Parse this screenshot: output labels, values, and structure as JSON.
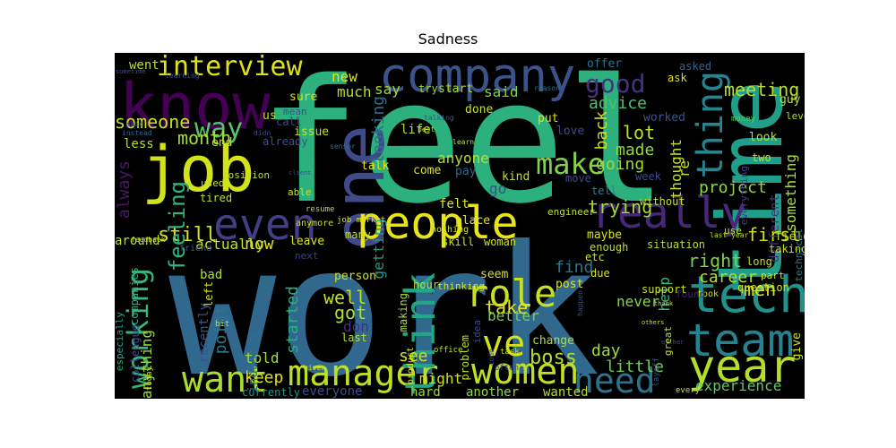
{
  "title": "Sadness",
  "words": [
    {
      "text": "feel",
      "color": "#2cb17e"
    },
    {
      "text": "work",
      "color": "#31688e"
    },
    {
      "text": "time",
      "color": "#1f9e89"
    },
    {
      "text": "know",
      "color": "#440154"
    },
    {
      "text": "company",
      "color": "#3b528b"
    },
    {
      "text": "job",
      "color": "#d2e21b"
    },
    {
      "text": "one",
      "color": "#3e4a89"
    },
    {
      "text": "people",
      "color": "#e8e419"
    },
    {
      "text": "really",
      "color": "#482878"
    },
    {
      "text": "even",
      "color": "#433e85"
    },
    {
      "text": "tech",
      "color": "#21918c"
    },
    {
      "text": "team",
      "color": "#26828e"
    },
    {
      "text": "year",
      "color": "#b5de2b"
    },
    {
      "text": "manager",
      "color": "#bddf26"
    },
    {
      "text": "women",
      "color": "#c2df23"
    },
    {
      "text": "want",
      "color": "#addc30"
    },
    {
      "text": "need",
      "color": "#2c728e"
    },
    {
      "text": "role",
      "color": "#c8e020"
    },
    {
      "text": "ve",
      "color": "#d5e21a"
    },
    {
      "text": "think",
      "color": "#22a785"
    },
    {
      "text": "interview",
      "color": "#dde318"
    },
    {
      "text": "good",
      "color": "#46337f"
    },
    {
      "text": "thing",
      "color": "#25848e"
    },
    {
      "text": "working",
      "color": "#35b779"
    },
    {
      "text": "make",
      "color": "#81d34d"
    },
    {
      "text": "way",
      "color": "#54c568"
    },
    {
      "text": "meeting",
      "color": "#b8de29"
    },
    {
      "text": "advice",
      "color": "#4ec36b"
    },
    {
      "text": "lot",
      "color": "#c0df25"
    },
    {
      "text": "made",
      "color": "#90d743"
    },
    {
      "text": "back",
      "color": "#d0e11c"
    },
    {
      "text": "going",
      "color": "#9bd93c"
    },
    {
      "text": "trying",
      "color": "#a8db34"
    },
    {
      "text": "project",
      "color": "#8bd646"
    },
    {
      "text": "first",
      "color": "#cde11d"
    },
    {
      "text": "right",
      "color": "#7ad151"
    },
    {
      "text": "career",
      "color": "#bade28"
    },
    {
      "text": "men",
      "color": "#d8e219"
    },
    {
      "text": "help",
      "color": "#3aba76"
    },
    {
      "text": "experience",
      "color": "#5ec962"
    },
    {
      "text": "boss",
      "color": "#b2dd2d"
    },
    {
      "text": "day",
      "color": "#9fda3a"
    },
    {
      "text": "little",
      "color": "#6ccd5a"
    },
    {
      "text": "still",
      "color": "#d2e21b"
    },
    {
      "text": "feeling",
      "color": "#2fb47c"
    },
    {
      "text": "month",
      "color": "#aadc32"
    },
    {
      "text": "always",
      "color": "#481769"
    },
    {
      "text": "someone",
      "color": "#c5e021"
    },
    {
      "text": "anything",
      "color": "#95d840"
    },
    {
      "text": "point",
      "color": "#2a788e"
    },
    {
      "text": "keep",
      "color": "#dde318"
    },
    {
      "text": "told",
      "color": "#a5db36"
    },
    {
      "text": "started",
      "color": "#27ad81"
    },
    {
      "text": "now",
      "color": "#e5e419"
    },
    {
      "text": "actually",
      "color": "#c8e020"
    },
    {
      "text": "well",
      "color": "#c2df23"
    },
    {
      "text": "got",
      "color": "#b2dd2d"
    },
    {
      "text": "don",
      "color": "#472d7b"
    },
    {
      "text": "see",
      "color": "#d2e21b"
    },
    {
      "text": "take",
      "color": "#e5e419"
    },
    {
      "text": "find",
      "color": "#2a768e"
    },
    {
      "text": "better",
      "color": "#73d056"
    },
    {
      "text": "never",
      "color": "#85d54a"
    },
    {
      "text": "might",
      "color": "#cde11d"
    },
    {
      "text": "say",
      "color": "#a2da37"
    },
    {
      "text": "said",
      "color": "#7fd34e"
    },
    {
      "text": "much",
      "color": "#b5de2b"
    },
    {
      "text": "new",
      "color": "#dde318"
    },
    {
      "text": "looking",
      "color": "#2d708e"
    },
    {
      "text": "getting",
      "color": "#1e9b8a"
    },
    {
      "text": "anyone",
      "color": "#b5de2b"
    },
    {
      "text": "go",
      "color": "#3d4d8a"
    },
    {
      "text": "thought",
      "color": "#c5e021"
    },
    {
      "text": "re",
      "color": "#c8e020"
    },
    {
      "text": "something",
      "color": "#a8db34"
    },
    {
      "text": "different",
      "color": "#46317e"
    },
    {
      "text": "hard",
      "color": "#9dd93b"
    },
    {
      "text": "another",
      "color": "#8ed645"
    },
    {
      "text": "wanted",
      "color": "#b5de2b"
    },
    {
      "text": "everyone",
      "color": "#3d4d8a"
    },
    {
      "text": "currently",
      "color": "#1f968b"
    },
    {
      "text": "industry",
      "color": "#2e6f8e"
    },
    {
      "text": "recently",
      "color": "#3b528b"
    },
    {
      "text": "around",
      "color": "#b8de29"
    },
    {
      "text": "bad",
      "color": "#ade12c"
    },
    {
      "text": "colleague",
      "color": "#3e4c8a"
    },
    {
      "text": "companies",
      "color": "#2ab07f"
    },
    {
      "text": "especially",
      "color": "#21a685"
    },
    {
      "text": "less",
      "color": "#b5de2b"
    },
    {
      "text": "end",
      "color": "#c0df25"
    },
    {
      "text": "went",
      "color": "#bddf26"
    },
    {
      "text": "us",
      "color": "#c2df23"
    },
    {
      "text": "sure",
      "color": "#d2e21b"
    },
    {
      "text": "mean",
      "color": "#3b528b"
    },
    {
      "text": "call",
      "color": "#3e4989"
    },
    {
      "text": "issue",
      "color": "#c0df25"
    },
    {
      "text": "already",
      "color": "#3b528b"
    },
    {
      "text": "try",
      "color": "#9bd93c"
    },
    {
      "text": "start",
      "color": "#a8db34"
    },
    {
      "text": "done",
      "color": "#c8e020"
    },
    {
      "text": "life",
      "color": "#b5de2b"
    },
    {
      "text": "felt",
      "color": "#d8e219"
    },
    {
      "text": "talk",
      "color": "#e5e419"
    },
    {
      "text": "come",
      "color": "#dde318"
    },
    {
      "text": "pay",
      "color": "#31688e"
    },
    {
      "text": "kind",
      "color": "#c5e021"
    },
    {
      "text": "put",
      "color": "#d8e219"
    },
    {
      "text": "love",
      "color": "#3e4c8a"
    },
    {
      "text": "offer",
      "color": "#2c728e"
    },
    {
      "text": "worked",
      "color": "#3b528b"
    },
    {
      "text": "asked",
      "color": "#33638d"
    },
    {
      "text": "ask",
      "color": "#d8e219"
    },
    {
      "text": "guy",
      "color": "#c0df25"
    },
    {
      "text": "look",
      "color": "#c2df23"
    },
    {
      "text": "two",
      "color": "#c8e020"
    },
    {
      "text": "everything",
      "color": "#433e85"
    },
    {
      "text": "week",
      "color": "#3e4a89"
    },
    {
      "text": "tell",
      "color": "#26828e"
    },
    {
      "text": "without",
      "color": "#c5e021"
    },
    {
      "text": "move",
      "color": "#3e4c8a"
    },
    {
      "text": "level",
      "color": "#b5de2b"
    },
    {
      "text": "money",
      "color": "#5ec962"
    },
    {
      "text": "field",
      "color": "#c8e020"
    },
    {
      "text": "taking",
      "color": "#bddf26"
    },
    {
      "text": "long",
      "color": "#c0df25"
    },
    {
      "text": "part",
      "color": "#d2e21b"
    },
    {
      "text": "use",
      "color": "#c5e021"
    },
    {
      "text": "technical",
      "color": "#2a788e"
    },
    {
      "text": "question",
      "color": "#d5e21a"
    },
    {
      "text": "took",
      "color": "#c5e021"
    },
    {
      "text": "found",
      "color": "#482475"
    },
    {
      "text": "support",
      "color": "#c8e020"
    },
    {
      "text": "give",
      "color": "#d2e21b"
    },
    {
      "text": "situation",
      "color": "#c2df23"
    },
    {
      "text": "enough",
      "color": "#bddf26"
    },
    {
      "text": "due",
      "color": "#d8e219"
    },
    {
      "text": "etc",
      "color": "#c5e021"
    },
    {
      "text": "maybe",
      "color": "#d8e219"
    },
    {
      "text": "post",
      "color": "#e5e419"
    },
    {
      "text": "woman",
      "color": "#d5e21a"
    },
    {
      "text": "skill",
      "color": "#c8e020"
    },
    {
      "text": "seem",
      "color": "#dde318"
    },
    {
      "text": "problem",
      "color": "#b5de2b"
    },
    {
      "text": "idea",
      "color": "#3e4989"
    },
    {
      "text": "change",
      "color": "#ade12c"
    },
    {
      "text": "making",
      "color": "#b2dd2d"
    },
    {
      "text": "person",
      "color": "#c8e020"
    },
    {
      "text": "hour",
      "color": "#c2df23"
    },
    {
      "text": "thinking",
      "color": "#d5e21a"
    },
    {
      "text": "leave",
      "color": "#dde318"
    },
    {
      "text": "many",
      "color": "#c0df25"
    },
    {
      "text": "next",
      "color": "#433e85"
    },
    {
      "text": "last",
      "color": "#c5e021"
    },
    {
      "text": "left",
      "color": "#d2e21b"
    },
    {
      "text": "place",
      "color": "#e5e419"
    },
    {
      "text": "engineer",
      "color": "#c8e020"
    },
    {
      "text": "tired",
      "color": "#c0df25"
    },
    {
      "text": "used",
      "color": "#c5e021"
    },
    {
      "text": "position",
      "color": "#c2df23"
    },
    {
      "text": "able",
      "color": "#c5e021"
    },
    {
      "text": "friend",
      "color": "#3b528b"
    },
    {
      "text": "anymore",
      "color": "#c8e020"
    },
    {
      "text": "resume",
      "color": "#b5de2b"
    },
    {
      "text": "job market",
      "color": "#d8e219"
    },
    {
      "text": "nothing",
      "color": "#d2e21b"
    },
    {
      "text": "office",
      "color": "#c5e021"
    },
    {
      "text": "bit",
      "color": "#c2df23"
    },
    {
      "text": "given",
      "color": "#bddf26"
    },
    {
      "text": "today",
      "color": "#c8e020"
    },
    {
      "text": "learning",
      "color": "#3b528b"
    },
    {
      "text": "sometime",
      "color": "#3e4989"
    },
    {
      "text": "instead",
      "color": "#31688e"
    },
    {
      "text": "said",
      "color": "#3b528b"
    },
    {
      "text": "didn",
      "color": "#3e4989"
    },
    {
      "text": "talking",
      "color": "#3b528b"
    },
    {
      "text": "best",
      "color": "#c0df25"
    },
    {
      "text": "sensor",
      "color": "#2c728e"
    },
    {
      "text": "learn",
      "color": "#c5e021"
    },
    {
      "text": "client",
      "color": "#3e4989"
    },
    {
      "text": "feedback",
      "color": "#c8e020"
    },
    {
      "text": "reason",
      "color": "#2c728e"
    },
    {
      "text": "last year",
      "color": "#bddf26"
    },
    {
      "text": "thank",
      "color": "#d8e219"
    },
    {
      "text": "either",
      "color": "#3e4989"
    },
    {
      "text": "others",
      "color": "#c5e021"
    },
    {
      "text": "task",
      "color": "#c2df23"
    },
    {
      "text": "product",
      "color": "#d5e21a"
    },
    {
      "text": "code",
      "color": "#3b528b"
    },
    {
      "text": "often",
      "color": "#3e4989"
    },
    {
      "text": "every",
      "color": "#c5e021"
    },
    {
      "text": "layoff",
      "color": "#3b528b"
    },
    {
      "text": "great",
      "color": "#c8e020"
    },
    {
      "text": "happen",
      "color": "#3e4989"
    },
    {
      "text": "someone",
      "color": "#c5e021"
    }
  ]
}
